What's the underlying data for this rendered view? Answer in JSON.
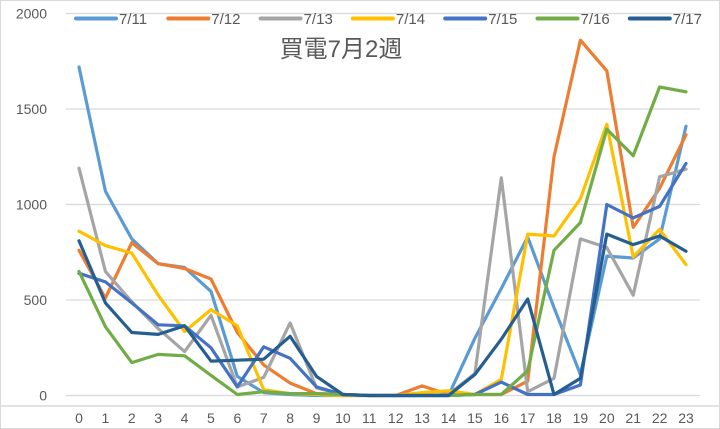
{
  "chart_data": {
    "type": "line",
    "title": "買電7月2週",
    "xlabel": "",
    "ylabel": "",
    "ylim": [
      0,
      2000
    ],
    "yticks": [
      0,
      500,
      1000,
      1500,
      2000
    ],
    "grid": true,
    "legend_position": "top",
    "x": [
      0,
      1,
      2,
      3,
      4,
      5,
      6,
      7,
      8,
      9,
      10,
      11,
      12,
      13,
      14,
      15,
      16,
      17,
      18,
      19,
      20,
      21,
      22,
      23
    ],
    "series": [
      {
        "name": "7/11",
        "color": "#5b9bd5",
        "values": [
          1720,
          1070,
          820,
          690,
          670,
          545,
          100,
          15,
          5,
          0,
          0,
          0,
          0,
          0,
          0,
          300,
          560,
          830,
          460,
          110,
          730,
          720,
          820,
          1410
        ]
      },
      {
        "name": "7/12",
        "color": "#ed7d31",
        "values": [
          760,
          510,
          800,
          690,
          665,
          610,
          330,
          160,
          65,
          10,
          5,
          0,
          0,
          50,
          5,
          5,
          5,
          75,
          1250,
          1860,
          1700,
          880,
          1085,
          1365
        ]
      },
      {
        "name": "7/13",
        "color": "#a5a5a5",
        "values": [
          1190,
          650,
          490,
          350,
          230,
          420,
          45,
          95,
          380,
          40,
          5,
          0,
          0,
          0,
          5,
          115,
          1140,
          20,
          90,
          820,
          775,
          525,
          1145,
          1185
        ]
      },
      {
        "name": "7/14",
        "color": "#ffc000",
        "values": [
          860,
          785,
          745,
          525,
          335,
          450,
          365,
          30,
          10,
          5,
          0,
          0,
          0,
          15,
          25,
          5,
          85,
          845,
          835,
          1030,
          1420,
          725,
          870,
          685
        ]
      },
      {
        "name": "7/15",
        "color": "#4472c4",
        "values": [
          640,
          595,
          485,
          370,
          365,
          250,
          45,
          255,
          195,
          45,
          5,
          0,
          0,
          0,
          0,
          5,
          70,
          5,
          5,
          55,
          1000,
          930,
          990,
          1215
        ]
      },
      {
        "name": "7/16",
        "color": "#70ad47",
        "values": [
          650,
          360,
          172,
          215,
          208,
          105,
          5,
          20,
          10,
          10,
          5,
          0,
          0,
          0,
          0,
          5,
          5,
          130,
          760,
          905,
          1395,
          1255,
          1615,
          1590
        ]
      },
      {
        "name": "7/17",
        "color": "#255e91",
        "values": [
          810,
          485,
          330,
          320,
          365,
          180,
          185,
          190,
          310,
          100,
          5,
          0,
          0,
          0,
          0,
          110,
          295,
          505,
          5,
          90,
          845,
          790,
          835,
          755
        ]
      }
    ]
  },
  "axis": {
    "y_labels": [
      "0",
      "500",
      "1000",
      "1500",
      "2000"
    ],
    "x_labels": [
      "0",
      "1",
      "2",
      "3",
      "4",
      "5",
      "6",
      "7",
      "8",
      "9",
      "10",
      "11",
      "12",
      "13",
      "14",
      "15",
      "16",
      "17",
      "18",
      "19",
      "20",
      "21",
      "22",
      "23"
    ]
  },
  "colors": {
    "gridline": "#d9d9d9",
    "text": "#595959"
  }
}
